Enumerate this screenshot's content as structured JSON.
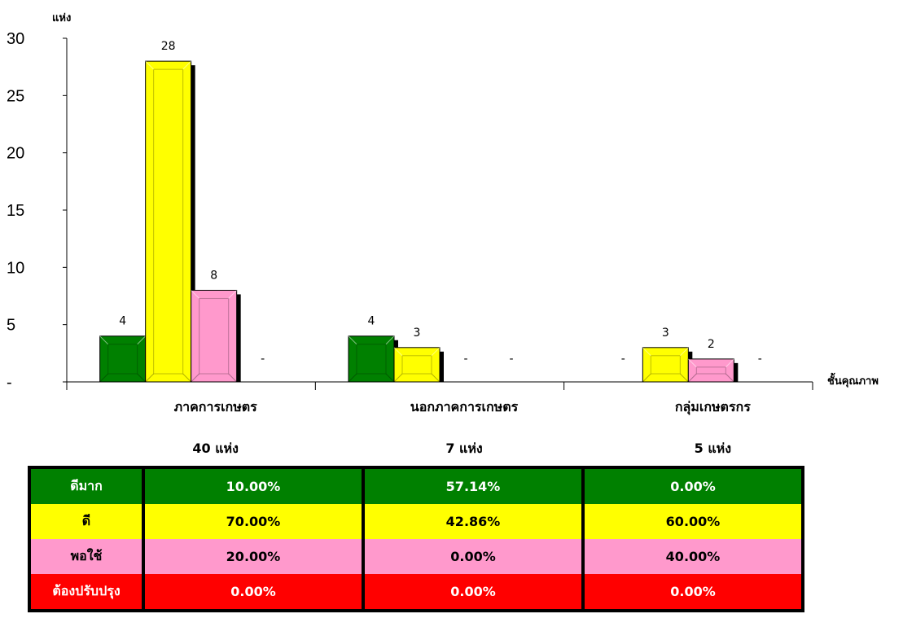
{
  "chart_data": {
    "type": "bar",
    "ylabel": "แห่ง",
    "xlabel": "ชั้นคุณภาพ",
    "ylim": [
      0,
      30
    ],
    "yticks": [
      0,
      5,
      10,
      15,
      20,
      25,
      30
    ],
    "ytick_labels": [
      "-",
      "5",
      "10",
      "15",
      "20",
      "25",
      "30"
    ],
    "categories": [
      "ภาคการเกษตร",
      "นอกภาคการเกษตร",
      "กลุ่มเกษตรกร"
    ],
    "category_totals": [
      "40  แห่ง",
      "7  แห่ง",
      "5  แห่ง"
    ],
    "series": [
      {
        "color": "#008000",
        "values": [
          4,
          4,
          0
        ],
        "value_labels": [
          "4",
          "4",
          "-"
        ]
      },
      {
        "color": "#ffff00",
        "values": [
          28,
          3,
          3
        ],
        "value_labels": [
          "28",
          "3",
          "3"
        ]
      },
      {
        "color": "#ff99cc",
        "values": [
          8,
          0,
          2
        ],
        "value_labels": [
          "8",
          "-",
          "2"
        ]
      },
      {
        "color": "#ff0000",
        "values": [
          0,
          0,
          0
        ],
        "value_labels": [
          "-",
          "-",
          "-"
        ]
      }
    ],
    "legend": "none",
    "grid": false
  },
  "summary_table": {
    "rows": [
      {
        "label": "ดีมาก",
        "color": "#008000",
        "text_color": "#ffffff",
        "values": [
          "10.00%",
          "57.14%",
          "0.00%"
        ]
      },
      {
        "label": "ดี",
        "color": "#ffff00",
        "text_color": "#000000",
        "values": [
          "70.00%",
          "42.86%",
          "60.00%"
        ]
      },
      {
        "label": "พอใช้",
        "color": "#ff99cc",
        "text_color": "#000000",
        "values": [
          "20.00%",
          "0.00%",
          "40.00%"
        ]
      },
      {
        "label": "ต้องปรับปรุง",
        "color": "#ff0000",
        "text_color": "#ffffff",
        "values": [
          "0.00%",
          "0.00%",
          "0.00%"
        ]
      }
    ]
  }
}
